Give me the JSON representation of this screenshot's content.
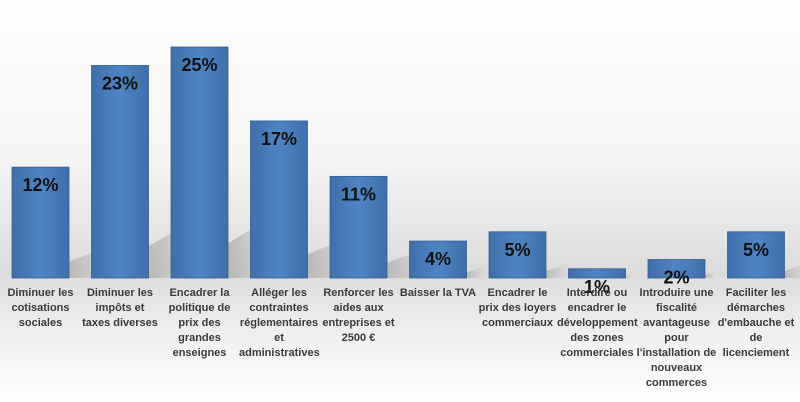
{
  "chart_data": {
    "type": "bar",
    "title": "",
    "xlabel": "",
    "ylabel": "",
    "ylim": [
      0,
      25
    ],
    "grid": false,
    "legend": "none",
    "unit": "%",
    "bar_color": "#4a7ebb",
    "categories": [
      "Diminuer les cotisations sociales",
      "Diminuer les impôts et taxes diverses",
      "Encadrer la politique de prix des grandes enseignes",
      "Alléger les contraintes réglementaires et administratives",
      "Renforcer les aides aux entreprises et 2500 €",
      "Baisser la TVA",
      "Encadrer le prix des loyers commerciaux",
      "Interdire ou encadrer le développement des zones commerciales",
      "Introduire une fiscalité avantageuse pour l'installation de nouveaux commerces",
      "Faciliter les démarches d'embauche et de licenciement"
    ],
    "values": [
      12,
      23,
      25,
      17,
      11,
      4,
      5,
      1,
      2,
      5
    ],
    "data_labels": [
      "12%",
      "23%",
      "25%",
      "17%",
      "11%",
      "4%",
      "5%",
      "1%",
      "2%",
      "5%"
    ]
  }
}
